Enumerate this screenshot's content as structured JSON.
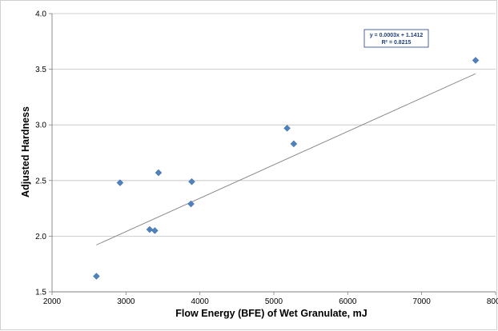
{
  "chart_data": {
    "type": "scatter",
    "title": "",
    "xlabel": "Flow Energy (BFE) of Wet Granulate, mJ",
    "ylabel": "Adjusted Hardness",
    "xlim": [
      2000,
      8000
    ],
    "ylim": [
      1.5,
      4.0
    ],
    "x_ticks": [
      2000,
      3000,
      4000,
      5000,
      6000,
      7000,
      8000
    ],
    "x_tick_labels": [
      "2000",
      "3000",
      "4000",
      "5000",
      "6000",
      "7000",
      "8000"
    ],
    "y_ticks": [
      1.5,
      2.0,
      2.5,
      3.0,
      3.5,
      4.0
    ],
    "y_tick_labels": [
      "1.5",
      "2.0",
      "2.5",
      "3.0",
      "3.5",
      "4.0"
    ],
    "grid": "horizontal",
    "marker_color": "#4f81bd",
    "trendline_color": "#7f7f7f",
    "points": [
      {
        "x": 2600,
        "y": 1.64
      },
      {
        "x": 2920,
        "y": 2.48
      },
      {
        "x": 3320,
        "y": 2.06
      },
      {
        "x": 3390,
        "y": 2.05
      },
      {
        "x": 3440,
        "y": 2.57
      },
      {
        "x": 3880,
        "y": 2.29
      },
      {
        "x": 3890,
        "y": 2.49
      },
      {
        "x": 5180,
        "y": 2.97
      },
      {
        "x": 5270,
        "y": 2.83
      },
      {
        "x": 7730,
        "y": 3.58
      }
    ],
    "trendline": {
      "x_start": 2600,
      "x_end": 7730,
      "slope": 0.0003,
      "intercept": 1.1412
    },
    "annotation": {
      "equation": "y = 0.0003x + 1.1412",
      "r_squared": "R² = 0.8215"
    }
  }
}
